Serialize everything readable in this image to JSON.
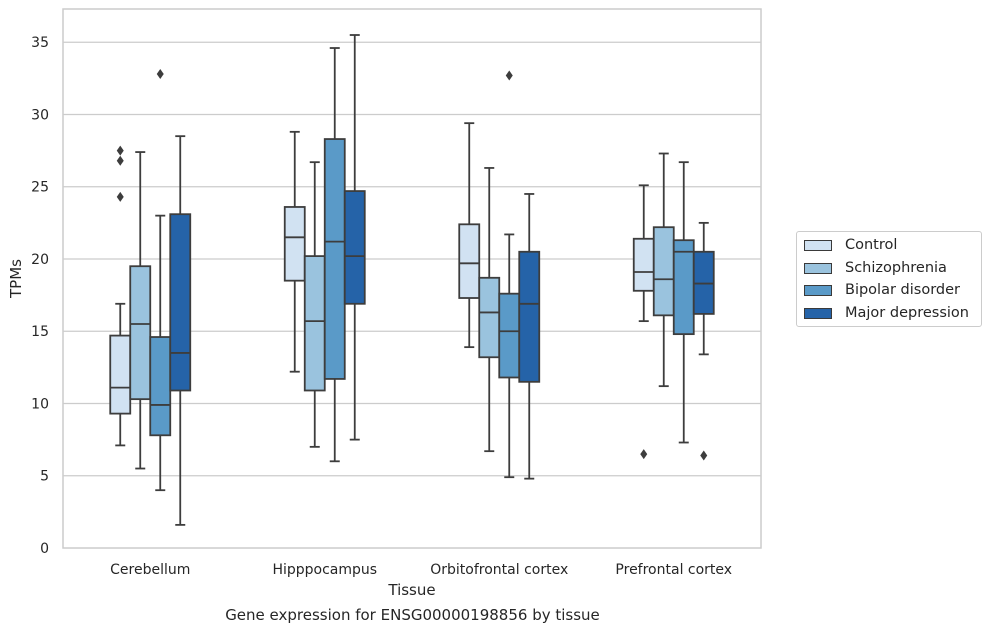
{
  "chart_data": {
    "type": "boxplot",
    "xlabel": "Tissue",
    "ylabel": "TPMs",
    "caption": "Gene expression for ENSG00000198856 by tissue",
    "ylim": [
      0,
      37.3
    ],
    "yticks": [
      0,
      5,
      10,
      15,
      20,
      25,
      30,
      35
    ],
    "grid": true,
    "legend_position": "right",
    "categories": [
      "Cerebellum",
      "Hipppocampus",
      "Orbitofrontal cortex",
      "Prefrontal cortex"
    ],
    "series": [
      {
        "name": "Control",
        "color": "#d1e2f2",
        "boxes": [
          {
            "whisker_low": 7.1,
            "q1": 9.3,
            "median": 11.1,
            "q3": 14.7,
            "whisker_high": 16.9,
            "outliers": [
              24.3,
              26.8,
              27.5
            ]
          },
          {
            "whisker_low": 12.2,
            "q1": 18.5,
            "median": 21.5,
            "q3": 23.6,
            "whisker_high": 28.8,
            "outliers": []
          },
          {
            "whisker_low": 13.9,
            "q1": 17.3,
            "median": 19.7,
            "q3": 22.4,
            "whisker_high": 29.4,
            "outliers": []
          },
          {
            "whisker_low": 15.7,
            "q1": 17.8,
            "median": 19.1,
            "q3": 21.4,
            "whisker_high": 25.1,
            "outliers": [
              6.5
            ]
          }
        ]
      },
      {
        "name": "Schizophrenia",
        "color": "#9ac3de",
        "boxes": [
          {
            "whisker_low": 5.5,
            "q1": 10.3,
            "median": 15.5,
            "q3": 19.5,
            "whisker_high": 27.4,
            "outliers": []
          },
          {
            "whisker_low": 7.0,
            "q1": 10.9,
            "median": 15.7,
            "q3": 20.2,
            "whisker_high": 26.7,
            "outliers": []
          },
          {
            "whisker_low": 6.7,
            "q1": 13.2,
            "median": 16.3,
            "q3": 18.7,
            "whisker_high": 26.3,
            "outliers": []
          },
          {
            "whisker_low": 11.2,
            "q1": 16.1,
            "median": 18.6,
            "q3": 22.2,
            "whisker_high": 27.3,
            "outliers": []
          }
        ]
      },
      {
        "name": "Bipolar disorder",
        "color": "#5a9ac8",
        "boxes": [
          {
            "whisker_low": 4.0,
            "q1": 7.8,
            "median": 9.9,
            "q3": 14.6,
            "whisker_high": 23.0,
            "outliers": [
              32.8
            ]
          },
          {
            "whisker_low": 6.0,
            "q1": 11.7,
            "median": 21.2,
            "q3": 28.3,
            "whisker_high": 34.6,
            "outliers": []
          },
          {
            "whisker_low": 4.9,
            "q1": 11.8,
            "median": 15.0,
            "q3": 17.6,
            "whisker_high": 21.7,
            "outliers": [
              32.7
            ]
          },
          {
            "whisker_low": 7.3,
            "q1": 14.8,
            "median": 20.5,
            "q3": 21.3,
            "whisker_high": 26.7,
            "outliers": []
          }
        ]
      },
      {
        "name": "Major depression",
        "color": "#2563a8",
        "boxes": [
          {
            "whisker_low": 1.6,
            "q1": 10.9,
            "median": 13.5,
            "q3": 23.1,
            "whisker_high": 28.5,
            "outliers": []
          },
          {
            "whisker_low": 7.5,
            "q1": 16.9,
            "median": 20.2,
            "q3": 24.7,
            "whisker_high": 35.5,
            "outliers": []
          },
          {
            "whisker_low": 4.8,
            "q1": 11.5,
            "median": 16.9,
            "q3": 20.5,
            "whisker_high": 24.5,
            "outliers": []
          },
          {
            "whisker_low": 13.4,
            "q1": 16.2,
            "median": 18.3,
            "q3": 20.5,
            "whisker_high": 22.5,
            "outliers": [
              6.4
            ]
          }
        ]
      }
    ]
  }
}
